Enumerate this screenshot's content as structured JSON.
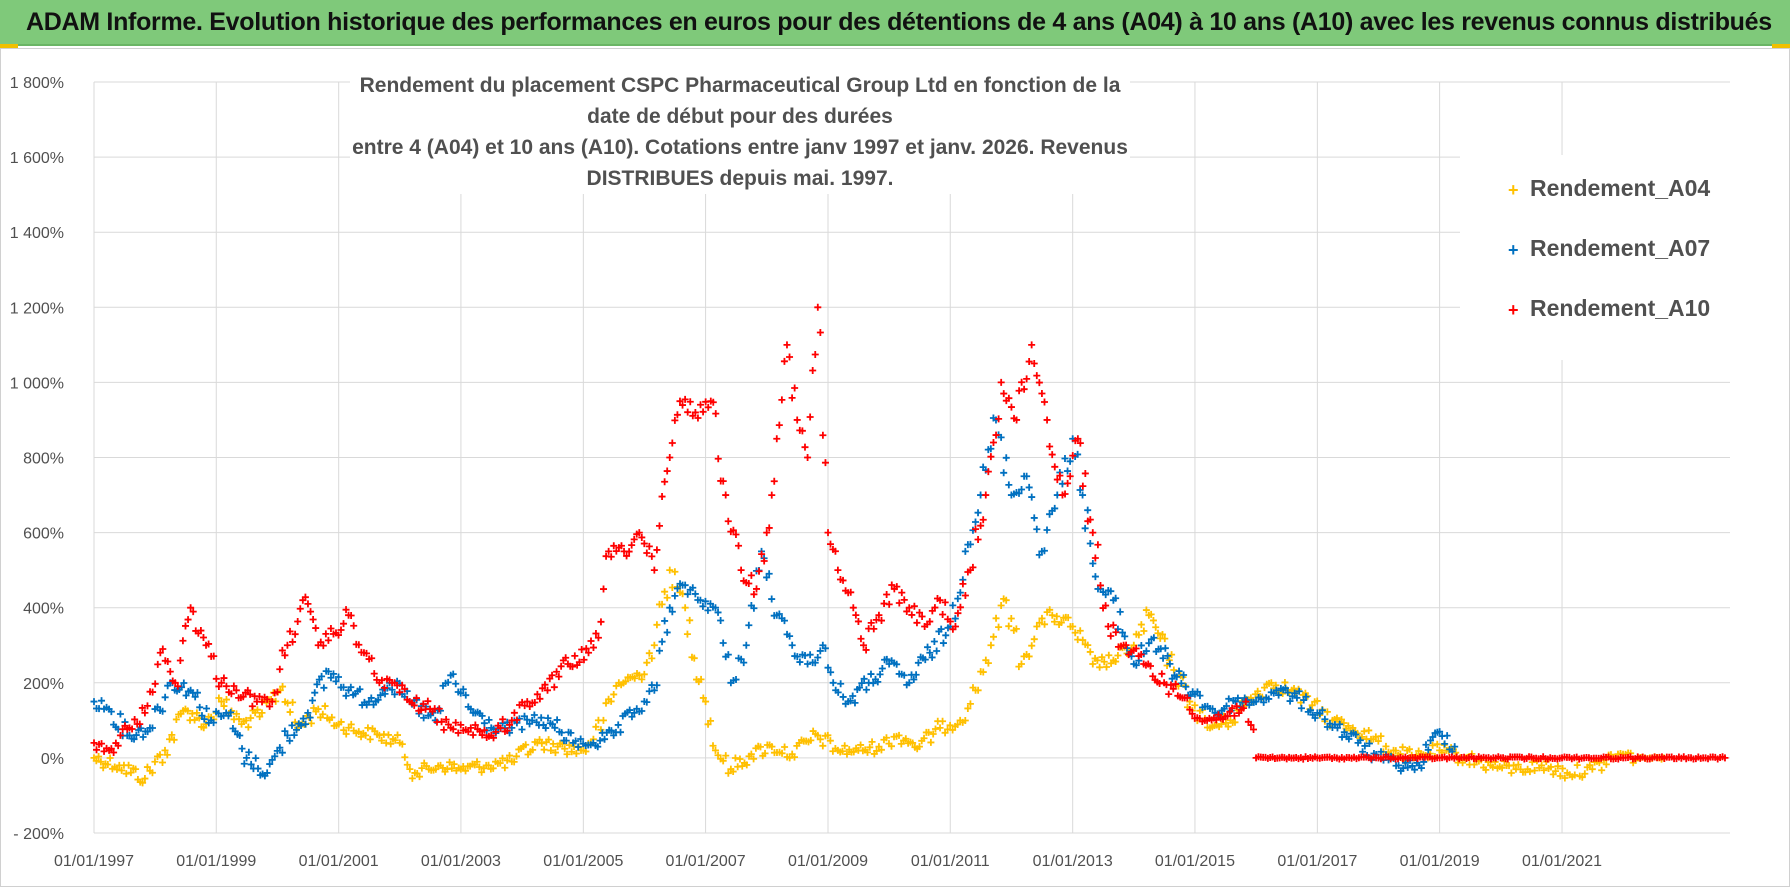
{
  "banner": {
    "text": "ADAM Informe. Evolution historique des performances en euros pour des détentions de 4 ans (A04) à 10 ans (A10) avec les revenus connus distribués"
  },
  "colors": {
    "A04": "#ffc000",
    "A07": "#0070c0",
    "A10": "#ff0000",
    "banner": "#7fc97a",
    "grid": "#d9d9d9"
  },
  "chart_data": {
    "type": "scatter",
    "title": "Rendement du placement CSPC Pharmaceutical Group Ltd en fonction de la date de début pour des durées entre 4 (A04) et 10 ans (A10).  Cotations entre janv 1997 et janv. 2026. Revenus DISTRIBUES depuis mai. 1997.",
    "title_lines": [
      "Rendement du placement CSPC Pharmaceutical Group Ltd en fonction de la date de début pour des durées",
      "entre 4 (A04) et 10 ans (A10).  Cotations entre janv 1997 et janv. 2026. Revenus DISTRIBUES depuis mai. 1997."
    ],
    "xlabel": "",
    "ylabel": "",
    "x_tick_labels": [
      "01/01/1997",
      "01/01/1999",
      "01/01/2001",
      "01/01/2003",
      "01/01/2005",
      "01/01/2007",
      "01/01/2009",
      "01/01/2011",
      "01/01/2013",
      "01/01/2015",
      "01/01/2017",
      "01/01/2019",
      "01/01/2021"
    ],
    "y_tick_labels": [
      "- 200%",
      "0%",
      "200%",
      "400%",
      "600%",
      "800%",
      "1 000%",
      "1 200%",
      "1 400%",
      "1 600%",
      "1 800%"
    ],
    "xlim": [
      "1997-01-01",
      "2023-10-01"
    ],
    "ylim": [
      -200,
      1800
    ],
    "grid": true,
    "legend_position": "top-right",
    "series": [
      {
        "name": "Rendement_A04",
        "marker": "+",
        "points": [
          [
            "1997-01-01",
            0
          ],
          [
            "1997-06-01",
            -20
          ],
          [
            "1997-11-01",
            -55
          ],
          [
            "1998-03-01",
            20
          ],
          [
            "1998-07-01",
            130
          ],
          [
            "1998-11-01",
            90
          ],
          [
            "1999-02-01",
            150
          ],
          [
            "1999-06-01",
            90
          ],
          [
            "1999-10-01",
            120
          ],
          [
            "2000-02-01",
            190
          ],
          [
            "2000-05-01",
            80
          ],
          [
            "2000-09-01",
            130
          ],
          [
            "2001-01-01",
            90
          ],
          [
            "2001-05-01",
            70
          ],
          [
            "2001-09-01",
            60
          ],
          [
            "2002-01-01",
            40
          ],
          [
            "2002-04-01",
            -40
          ],
          [
            "2002-09-01",
            -20
          ],
          [
            "2003-01-01",
            -30
          ],
          [
            "2003-06-01",
            -20
          ],
          [
            "2003-11-01",
            -10
          ],
          [
            "2004-04-01",
            40
          ],
          [
            "2004-08-01",
            30
          ],
          [
            "2005-01-01",
            20
          ],
          [
            "2005-05-01",
            100
          ],
          [
            "2005-08-01",
            200
          ],
          [
            "2005-12-01",
            220
          ],
          [
            "2006-03-01",
            300
          ],
          [
            "2006-06-01",
            500
          ],
          [
            "2006-09-01",
            400
          ],
          [
            "2007-01-01",
            150
          ],
          [
            "2007-03-01",
            20
          ],
          [
            "2007-06-01",
            -30
          ],
          [
            "2007-10-01",
            10
          ],
          [
            "2008-02-01",
            30
          ],
          [
            "2008-06-01",
            10
          ],
          [
            "2008-11-01",
            60
          ],
          [
            "2009-03-01",
            20
          ],
          [
            "2009-07-01",
            20
          ],
          [
            "2009-11-01",
            30
          ],
          [
            "2010-03-01",
            60
          ],
          [
            "2010-07-01",
            30
          ],
          [
            "2010-11-01",
            80
          ],
          [
            "2011-03-01",
            100
          ],
          [
            "2011-06-01",
            180
          ],
          [
            "2011-09-01",
            300
          ],
          [
            "2011-12-01",
            420
          ],
          [
            "2012-03-01",
            250
          ],
          [
            "2012-06-01",
            350
          ],
          [
            "2012-09-01",
            380
          ],
          [
            "2013-01-01",
            350
          ],
          [
            "2013-05-01",
            250
          ],
          [
            "2013-09-01",
            260
          ],
          [
            "2014-01-01",
            300
          ],
          [
            "2014-04-01",
            380
          ],
          [
            "2014-08-01",
            260
          ],
          [
            "2014-12-01",
            150
          ],
          [
            "2015-04-01",
            80
          ],
          [
            "2015-08-01",
            100
          ],
          [
            "2015-12-01",
            160
          ],
          [
            "2016-04-01",
            200
          ],
          [
            "2016-08-01",
            180
          ],
          [
            "2016-12-01",
            140
          ],
          [
            "2017-04-01",
            100
          ],
          [
            "2017-08-01",
            80
          ],
          [
            "2017-12-01",
            50
          ],
          [
            "2018-04-01",
            20
          ],
          [
            "2018-08-01",
            0
          ],
          [
            "2019-01-01",
            20
          ],
          [
            "2019-06-01",
            0
          ],
          [
            "2019-11-01",
            -20
          ],
          [
            "2020-04-01",
            -30
          ],
          [
            "2020-09-01",
            -20
          ],
          [
            "2021-02-01",
            -40
          ],
          [
            "2021-07-01",
            -30
          ],
          [
            "2021-12-01",
            10
          ],
          [
            "2022-04-01",
            0
          ],
          [
            "2022-09-01",
            0
          ]
        ]
      },
      {
        "name": "Rendement_A07",
        "marker": "+",
        "points": [
          [
            "1997-01-01",
            150
          ],
          [
            "1997-04-01",
            130
          ],
          [
            "1997-08-01",
            60
          ],
          [
            "1997-12-01",
            80
          ],
          [
            "1998-04-01",
            200
          ],
          [
            "1998-08-01",
            180
          ],
          [
            "1998-12-01",
            100
          ],
          [
            "1999-03-01",
            120
          ],
          [
            "1999-07-01",
            0
          ],
          [
            "1999-11-01",
            -40
          ],
          [
            "2000-03-01",
            60
          ],
          [
            "2000-07-01",
            120
          ],
          [
            "2000-11-01",
            230
          ],
          [
            "2001-03-01",
            180
          ],
          [
            "2001-07-01",
            150
          ],
          [
            "2001-11-01",
            200
          ],
          [
            "2002-03-01",
            150
          ],
          [
            "2002-08-01",
            100
          ],
          [
            "2002-11-01",
            220
          ],
          [
            "2003-03-01",
            130
          ],
          [
            "2003-07-01",
            80
          ],
          [
            "2003-11-01",
            80
          ],
          [
            "2004-03-01",
            100
          ],
          [
            "2004-07-01",
            90
          ],
          [
            "2004-11-01",
            40
          ],
          [
            "2005-03-01",
            40
          ],
          [
            "2005-07-01",
            60
          ],
          [
            "2005-11-01",
            120
          ],
          [
            "2006-03-01",
            180
          ],
          [
            "2006-06-01",
            400
          ],
          [
            "2006-09-01",
            460
          ],
          [
            "2006-12-01",
            420
          ],
          [
            "2007-03-01",
            400
          ],
          [
            "2007-06-01",
            200
          ],
          [
            "2007-09-01",
            300
          ],
          [
            "2007-12-01",
            550
          ],
          [
            "2008-03-01",
            380
          ],
          [
            "2008-06-01",
            300
          ],
          [
            "2008-09-01",
            250
          ],
          [
            "2008-12-01",
            300
          ],
          [
            "2009-02-01",
            200
          ],
          [
            "2009-05-01",
            150
          ],
          [
            "2009-09-01",
            200
          ],
          [
            "2010-01-01",
            250
          ],
          [
            "2010-05-01",
            200
          ],
          [
            "2010-09-01",
            280
          ],
          [
            "2011-01-01",
            350
          ],
          [
            "2011-04-01",
            550
          ],
          [
            "2011-07-01",
            700
          ],
          [
            "2011-10-01",
            900
          ],
          [
            "2012-01-01",
            700
          ],
          [
            "2012-04-01",
            750
          ],
          [
            "2012-07-01",
            550
          ],
          [
            "2012-10-01",
            700
          ],
          [
            "2013-01-01",
            850
          ],
          [
            "2013-03-01",
            700
          ],
          [
            "2013-06-01",
            450
          ],
          [
            "2013-09-01",
            420
          ],
          [
            "2014-01-01",
            250
          ],
          [
            "2014-05-01",
            320
          ],
          [
            "2014-09-01",
            220
          ],
          [
            "2015-01-01",
            170
          ],
          [
            "2015-05-01",
            120
          ],
          [
            "2015-09-01",
            150
          ],
          [
            "2016-01-01",
            150
          ],
          [
            "2016-05-01",
            180
          ],
          [
            "2016-09-01",
            160
          ],
          [
            "2017-01-01",
            120
          ],
          [
            "2017-05-01",
            80
          ],
          [
            "2017-09-01",
            40
          ],
          [
            "2018-01-01",
            0
          ],
          [
            "2018-05-01",
            -20
          ],
          [
            "2018-09-01",
            -20
          ],
          [
            "2019-01-01",
            70
          ],
          [
            "2019-04-01",
            30
          ]
        ]
      },
      {
        "name": "Rendement_A10",
        "marker": "+",
        "points": [
          [
            "1997-01-01",
            40
          ],
          [
            "1997-04-01",
            20
          ],
          [
            "1997-08-01",
            80
          ],
          [
            "1997-11-01",
            120
          ],
          [
            "1998-02-01",
            280
          ],
          [
            "1998-05-01",
            200
          ],
          [
            "1998-08-01",
            400
          ],
          [
            "1998-11-01",
            300
          ],
          [
            "1999-02-01",
            200
          ],
          [
            "1999-05-01",
            180
          ],
          [
            "1999-09-01",
            150
          ],
          [
            "1999-12-01",
            150
          ],
          [
            "2000-03-01",
            300
          ],
          [
            "2000-06-01",
            420
          ],
          [
            "2000-09-01",
            300
          ],
          [
            "2000-12-01",
            330
          ],
          [
            "2001-03-01",
            380
          ],
          [
            "2001-06-01",
            280
          ],
          [
            "2001-09-01",
            200
          ],
          [
            "2001-12-01",
            200
          ],
          [
            "2002-03-01",
            150
          ],
          [
            "2002-07-01",
            130
          ],
          [
            "2002-11-01",
            80
          ],
          [
            "2003-03-01",
            80
          ],
          [
            "2003-07-01",
            60
          ],
          [
            "2003-11-01",
            100
          ],
          [
            "2004-02-01",
            150
          ],
          [
            "2004-06-01",
            180
          ],
          [
            "2004-10-01",
            250
          ],
          [
            "2005-02-01",
            280
          ],
          [
            "2005-04-01",
            320
          ],
          [
            "2005-06-01",
            550
          ],
          [
            "2005-09-01",
            550
          ],
          [
            "2005-12-01",
            600
          ],
          [
            "2006-03-01",
            500
          ],
          [
            "2006-06-01",
            800
          ],
          [
            "2006-08-01",
            950
          ],
          [
            "2006-11-01",
            920
          ],
          [
            "2007-02-01",
            950
          ],
          [
            "2007-05-01",
            700
          ],
          [
            "2007-08-01",
            500
          ],
          [
            "2007-11-01",
            450
          ],
          [
            "2008-01-01",
            600
          ],
          [
            "2008-03-01",
            850
          ],
          [
            "2008-05-01",
            1100
          ],
          [
            "2008-07-01",
            900
          ],
          [
            "2008-09-01",
            800
          ],
          [
            "2008-11-01",
            1200
          ],
          [
            "2009-01-01",
            600
          ],
          [
            "2009-03-01",
            500
          ],
          [
            "2009-06-01",
            400
          ],
          [
            "2009-08-01",
            300
          ],
          [
            "2009-11-01",
            380
          ],
          [
            "2010-02-01",
            450
          ],
          [
            "2010-05-01",
            400
          ],
          [
            "2010-08-01",
            350
          ],
          [
            "2010-11-01",
            420
          ],
          [
            "2011-02-01",
            350
          ],
          [
            "2011-05-01",
            500
          ],
          [
            "2011-08-01",
            700
          ],
          [
            "2011-11-01",
            1000
          ],
          [
            "2012-02-01",
            900
          ],
          [
            "2012-05-01",
            1100
          ],
          [
            "2012-08-01",
            900
          ],
          [
            "2012-11-01",
            700
          ],
          [
            "2013-02-01",
            850
          ],
          [
            "2013-05-01",
            600
          ],
          [
            "2013-08-01",
            350
          ],
          [
            "2013-11-01",
            300
          ],
          [
            "2014-03-01",
            250
          ],
          [
            "2014-07-01",
            200
          ],
          [
            "2014-11-01",
            160
          ],
          [
            "2015-03-01",
            100
          ],
          [
            "2015-07-01",
            110
          ],
          [
            "2015-11-01",
            150
          ],
          [
            "2016-01-01",
            0
          ],
          [
            "2017-01-01",
            0
          ],
          [
            "2018-01-01",
            0
          ],
          [
            "2019-01-01",
            0
          ],
          [
            "2020-01-01",
            0
          ],
          [
            "2021-01-01",
            0
          ],
          [
            "2022-01-01",
            0
          ],
          [
            "2023-09-01",
            0
          ]
        ]
      }
    ]
  }
}
